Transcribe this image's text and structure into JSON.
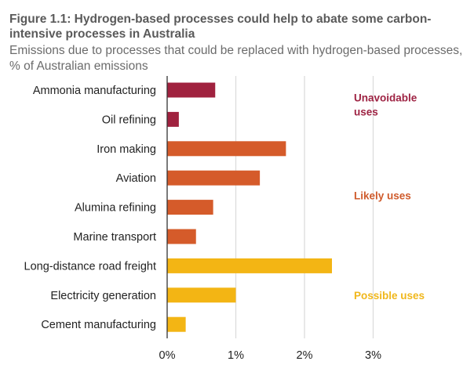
{
  "chart_data": {
    "type": "bar",
    "orientation": "horizontal",
    "title": "Figure 1.1: Hydrogen-based processes could help to abate some carbon-intensive processes in Australia",
    "subtitle": "Emissions due to processes that could be replaced with hydrogen-based processes, % of Australian emissions",
    "xlabel": "",
    "ylabel": "",
    "xlim": [
      0,
      3
    ],
    "xticks": [
      0,
      1,
      2,
      3
    ],
    "xtick_labels": [
      "0%",
      "1%",
      "2%",
      "3%"
    ],
    "grid": true,
    "categories": [
      "Ammonia manufacturing",
      "Oil refining",
      "Iron making",
      "Aviation",
      "Alumina refining",
      "Marine transport",
      "Long-distance road freight",
      "Electricity generation",
      "Cement manufacturing"
    ],
    "values": [
      0.7,
      0.17,
      1.73,
      1.35,
      0.67,
      0.42,
      2.4,
      1.0,
      0.27
    ],
    "groups": [
      "unavoidable",
      "unavoidable",
      "likely",
      "likely",
      "likely",
      "likely",
      "possible",
      "possible",
      "possible"
    ],
    "annotations": [
      {
        "key": "unavoidable",
        "lines": [
          "Unavoidable",
          "uses"
        ],
        "color": "#9e2343",
        "row": 0.5
      },
      {
        "key": "likely",
        "lines": [
          "Likely uses"
        ],
        "color": "#cf5b2c",
        "row": 3.6
      },
      {
        "key": "possible",
        "lines": [
          "Possible uses"
        ],
        "color": "#f0b71b",
        "row": 7
      }
    ],
    "colors": {
      "unavoidable": "#a0223f",
      "likely": "#d55b2a",
      "possible": "#f3b514"
    }
  }
}
